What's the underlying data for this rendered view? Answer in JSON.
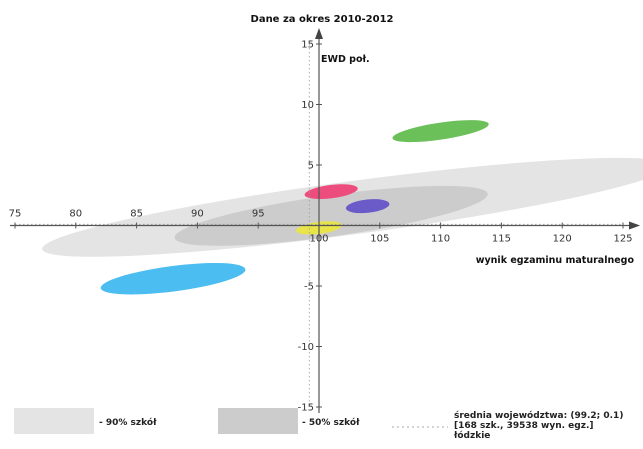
{
  "chart_data": {
    "type": "scatter",
    "title": "Dane za okres 2010-2012",
    "xlabel": "wynik egzaminu maturalnego",
    "ylabel": "EWD poł.",
    "xlim": [
      75,
      125
    ],
    "ylim": [
      -15,
      15
    ],
    "x_ticks": [
      75,
      80,
      85,
      90,
      95,
      100,
      105,
      110,
      115,
      120,
      125
    ],
    "y_ticks": [
      -15,
      -10,
      -5,
      5,
      10,
      15
    ],
    "grid": false,
    "ellipses": [
      {
        "name": "90% szkół",
        "cx": 103,
        "cy": 1.5,
        "rx": 26,
        "ry": 2.2,
        "angle_deg": 7.6,
        "color": "#e4e4e4"
      },
      {
        "name": "50% szkół",
        "cx": 101,
        "cy": 0.8,
        "rx": 13,
        "ry": 1.7,
        "angle_deg": 8,
        "color": "#cccccc"
      },
      {
        "cx": 88,
        "cy": -4.4,
        "rx": 6,
        "ry": 1.05,
        "angle_deg": 7.4,
        "color": "#4bbdf0"
      },
      {
        "cx": 110,
        "cy": 7.8,
        "rx": 4,
        "ry": 0.7,
        "angle_deg": 8.4,
        "color": "#6cc05a"
      },
      {
        "cx": 101,
        "cy": 2.8,
        "rx": 2.2,
        "ry": 0.55,
        "angle_deg": 7,
        "color": "#ec4d7c"
      },
      {
        "cx": 104,
        "cy": 1.6,
        "rx": 1.8,
        "ry": 0.55,
        "angle_deg": 6,
        "color": "#6a5bc8"
      },
      {
        "cx": 100,
        "cy": -0.2,
        "rx": 1.9,
        "ry": 0.5,
        "angle_deg": 7,
        "color": "#e8e44a"
      }
    ],
    "average": {
      "x": 99.2,
      "y": 0.1
    },
    "legend": [
      {
        "swatch_color": "#e4e4e4",
        "label": "- 90% szkół"
      },
      {
        "swatch_color": "#cccccc",
        "label": "- 50% szkół"
      },
      {
        "lines": [
          "średnia województwa: (99.2; 0.1)",
          "[168 szk., 39538 wyn. egz.]",
          "łódzkie"
        ]
      }
    ]
  }
}
